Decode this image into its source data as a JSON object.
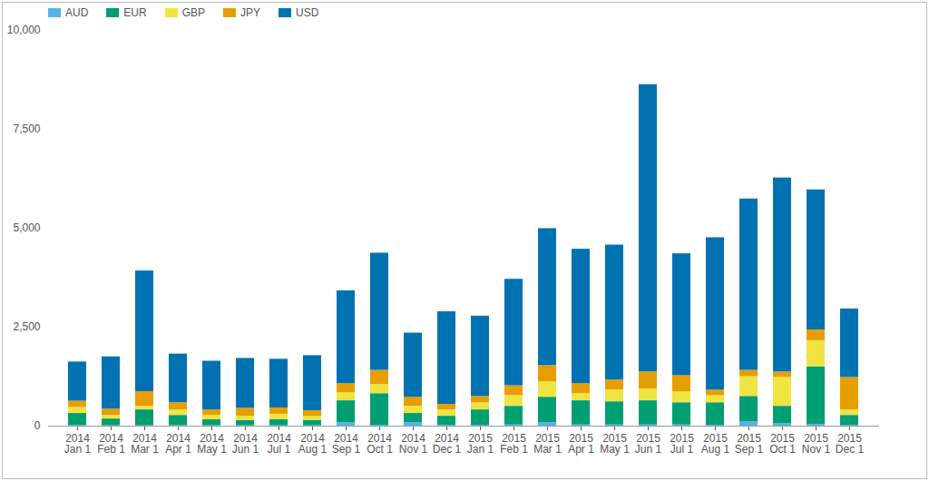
{
  "chart_data": {
    "type": "bar",
    "stacked": true,
    "legend": "top-left",
    "grid": false,
    "categories": [
      "2014 Jan 1",
      "2014 Feb 1",
      "2014 Mar 1",
      "2014 Apr 1",
      "2014 May 1",
      "2014 Jun 1",
      "2014 Jul 1",
      "2014 Aug 1",
      "2014 Sep 1",
      "2014 Oct 1",
      "2014 Nov 1",
      "2014 Dec 1",
      "2015 Jan 1",
      "2015 Feb 1",
      "2015 Mar 1",
      "2015 Apr 1",
      "2015 May 1",
      "2015 Jun 1",
      "2015 Jul 1",
      "2015 Aug 1",
      "2015 Sep 1",
      "2015 Oct 1",
      "2015 Nov 1",
      "2015 Dec 1"
    ],
    "series": [
      {
        "name": "AUD",
        "color": "#56b4e9",
        "values": [
          20,
          10,
          10,
          10,
          10,
          10,
          10,
          10,
          90,
          20,
          90,
          20,
          20,
          30,
          90,
          30,
          30,
          30,
          30,
          20,
          110,
          60,
          40,
          20
        ]
      },
      {
        "name": "EUR",
        "color": "#009e73",
        "values": [
          300,
          170,
          400,
          260,
          150,
          130,
          150,
          130,
          550,
          800,
          230,
          230,
          390,
          470,
          640,
          610,
          585,
          610,
          560,
          570,
          640,
          440,
          1460,
          250
        ]
      },
      {
        "name": "GBP",
        "color": "#f0e442",
        "values": [
          150,
          90,
          90,
          140,
          110,
          110,
          140,
          110,
          200,
          230,
          180,
          160,
          180,
          270,
          390,
          180,
          300,
          300,
          275,
          180,
          500,
          730,
          660,
          140
        ]
      },
      {
        "name": "JPY",
        "color": "#e69f00",
        "values": [
          160,
          160,
          370,
          180,
          140,
          200,
          160,
          140,
          230,
          360,
          230,
          140,
          160,
          250,
          410,
          250,
          250,
          430,
          410,
          140,
          160,
          140,
          270,
          820
        ]
      },
      {
        "name": "USD",
        "color": "#0072b2",
        "values": [
          990,
          1320,
          3050,
          1230,
          1230,
          1260,
          1230,
          1390,
          2350,
          2960,
          1620,
          2340,
          2030,
          2690,
          3460,
          3400,
          3410,
          7260,
          3080,
          3850,
          4330,
          4900,
          3540,
          1730
        ]
      }
    ],
    "ylim": [
      0,
      10000
    ],
    "yticks": [
      0,
      {
        "value": 2500,
        "label": "2,500"
      },
      {
        "value": 5000,
        "label": "5,000"
      },
      {
        "value": 7500,
        "label": "7,500"
      },
      {
        "value": 10000,
        "label": "10,000"
      }
    ]
  }
}
